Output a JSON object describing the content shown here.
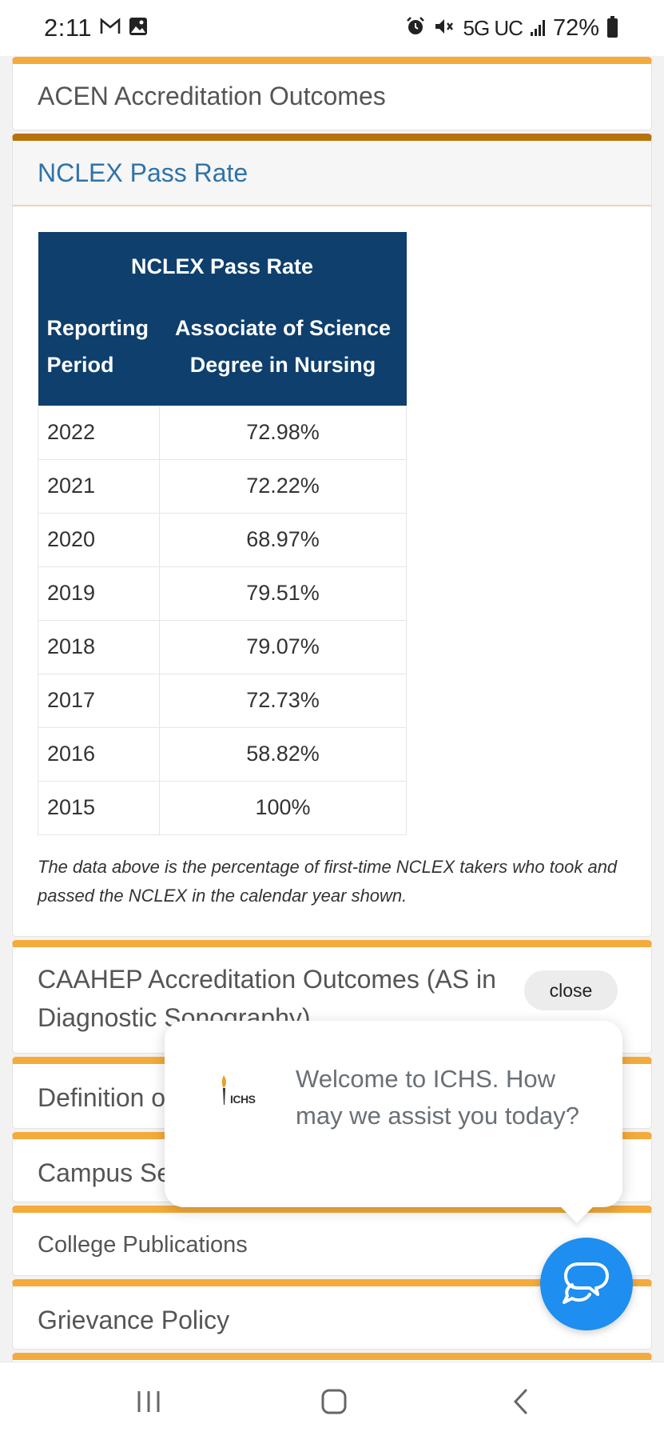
{
  "status_bar": {
    "time": "2:11",
    "network": "5G UC",
    "battery": "72%",
    "icons": [
      "gmail-icon",
      "gallery-icon",
      "alarm-icon",
      "mute-icon",
      "signal-icon",
      "battery-icon"
    ]
  },
  "sections": {
    "acen": "ACEN Accreditation Outcomes",
    "nclex": "NCLEX Pass Rate",
    "caahep_line1": "CAAHEP Accreditation Outcomes (AS in",
    "caahep_line2": "Diagnostic Sonography)",
    "definition": "Definition of",
    "campus": "Campus Se",
    "publications": "College Publications",
    "grievance": "Grievance Policy"
  },
  "table": {
    "title": "NCLEX Pass Rate",
    "col1_line1": "Reporting",
    "col1_line2": "Period",
    "col2_line1": "Associate of Science",
    "col2_line2": "Degree in Nursing",
    "rows": [
      {
        "year": "2022",
        "rate": "72.98%"
      },
      {
        "year": "2021",
        "rate": "72.22%"
      },
      {
        "year": "2020",
        "rate": "68.97%"
      },
      {
        "year": "2019",
        "rate": "79.51%"
      },
      {
        "year": "2018",
        "rate": "79.07%"
      },
      {
        "year": "2017",
        "rate": "72.73%"
      },
      {
        "year": "2016",
        "rate": "58.82%"
      },
      {
        "year": "2015",
        "rate": "100%"
      }
    ],
    "note": "The data above is the percentage of first-time NCLEX takers who took and passed the NCLEX in the calendar year shown."
  },
  "chat": {
    "close": "close",
    "logo": "ICHS",
    "message": "Welcome to ICHS. How may we assist you today?"
  },
  "colors": {
    "accent": "#f4ab3b",
    "accent_active": "#b8720b",
    "table_header": "#0e3f6d",
    "link": "#2f73a9",
    "chat_fab": "#1e8ef0"
  }
}
